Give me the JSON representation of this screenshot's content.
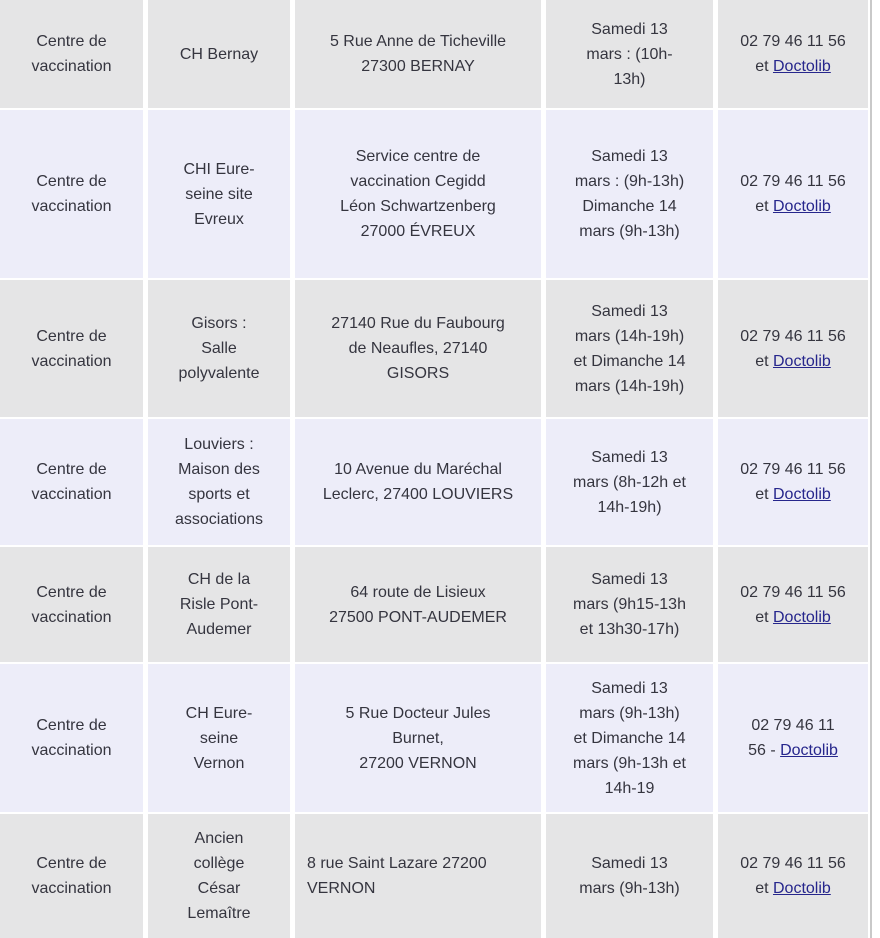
{
  "theme": {
    "row-bg-gray": "#e5e5e6",
    "row-bg-lavender": "#ededf9",
    "text-color": "#35353f",
    "link-color": "#26268c",
    "edge-line-color": "#c9c9c9"
  },
  "table": {
    "rows": [
      {
        "category": "Centre de\nvaccination",
        "center": "CH Bernay",
        "address": "5 Rue Anne de Ticheville\n27300 BERNAY",
        "schedule": "Samedi 13\nmars : (10h-\n13h)",
        "phone": "02 79 46 11 56\net ",
        "link": "Doctolib"
      },
      {
        "category": "Centre de\nvaccination",
        "center": "CHI Eure-\nseine site\nEvreux",
        "address": "Service centre de\nvaccination Cegidd\nLéon Schwartzenberg\n27000 ÉVREUX",
        "schedule": "Samedi 13\nmars : (9h-13h)\nDimanche 14\nmars (9h-13h)",
        "phone": "02 79 46 11 56\net ",
        "link": "Doctolib"
      },
      {
        "category": "Centre de\nvaccination",
        "center": "Gisors :\nSalle\npolyvalente",
        "address": "27140 Rue du Faubourg\nde Neaufles, 27140\nGISORS",
        "schedule": "Samedi 13\nmars (14h-19h)\net Dimanche 14\nmars (14h-19h)",
        "phone": "02 79 46 11 56\net ",
        "link": "Doctolib"
      },
      {
        "category": "Centre de\nvaccination",
        "center": "Louviers :\nMaison des\nsports et\nassociations",
        "address": "10 Avenue du Maréchal\nLeclerc, 27400 LOUVIERS",
        "schedule": "Samedi 13\nmars (8h-12h et\n14h-19h)",
        "phone": "02 79 46 11 56\net ",
        "link": "Doctolib"
      },
      {
        "category": "Centre de\nvaccination",
        "center": "CH de la\nRisle Pont-\nAudemer",
        "address": "64 route de Lisieux\n27500 PONT-AUDEMER",
        "schedule": "Samedi 13\nmars (9h15-13h\net 13h30-17h)",
        "phone": "02 79 46 11 56\net ",
        "link": "Doctolib"
      },
      {
        "category": "Centre de\nvaccination",
        "center": "CH Eure-\nseine\nVernon",
        "address": "5 Rue Docteur Jules\nBurnet,\n27200 VERNON",
        "schedule": "Samedi 13\nmars (9h-13h)\net Dimanche 14\nmars (9h-13h et\n14h-19",
        "phone": "02 79 46 11\n56 - ",
        "link": "Doctolib"
      },
      {
        "category": "Centre de\nvaccination",
        "center": "Ancien\ncollège\nCésar\nLemaître",
        "address": "8 rue Saint Lazare 27200\nVERNON",
        "schedule": "Samedi 13\nmars (9h-13h)",
        "phone": "02 79 46 11 56\net ",
        "link": "Doctolib"
      }
    ]
  }
}
